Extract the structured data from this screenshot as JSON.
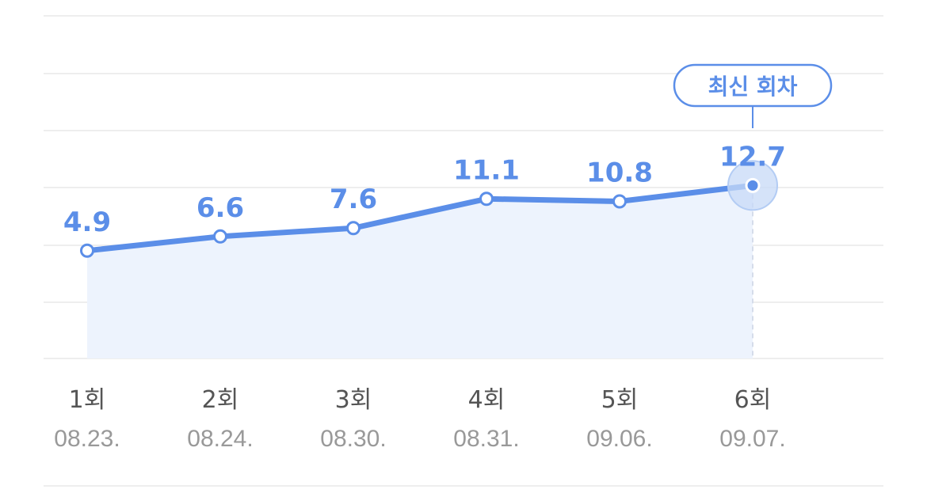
{
  "chart_data": {
    "type": "line",
    "title": "",
    "xlabel": "",
    "ylabel": "",
    "categories": [
      "1회",
      "2회",
      "3회",
      "4회",
      "5회",
      "6회"
    ],
    "dates": [
      "08.23.",
      "08.24.",
      "08.30.",
      "08.31.",
      "09.06.",
      "09.07."
    ],
    "series": [
      {
        "values": [
          4.9,
          6.6,
          7.6,
          11.1,
          10.8,
          12.7
        ],
        "labels": [
          "4.9",
          "6.6",
          "7.6",
          "11.1",
          "10.8",
          "12.7"
        ]
      }
    ],
    "ylim": [
      -8,
      33
    ],
    "grid": true,
    "area_fill": true,
    "highlight_index": 5,
    "highlight_badge": "최신 회차",
    "colors": {
      "line": "#5b8ee8",
      "area": "#edf3fd",
      "label": "#5b8ee8",
      "grid": "#eeeeee",
      "highlight_halo": "#c7daf7"
    }
  }
}
